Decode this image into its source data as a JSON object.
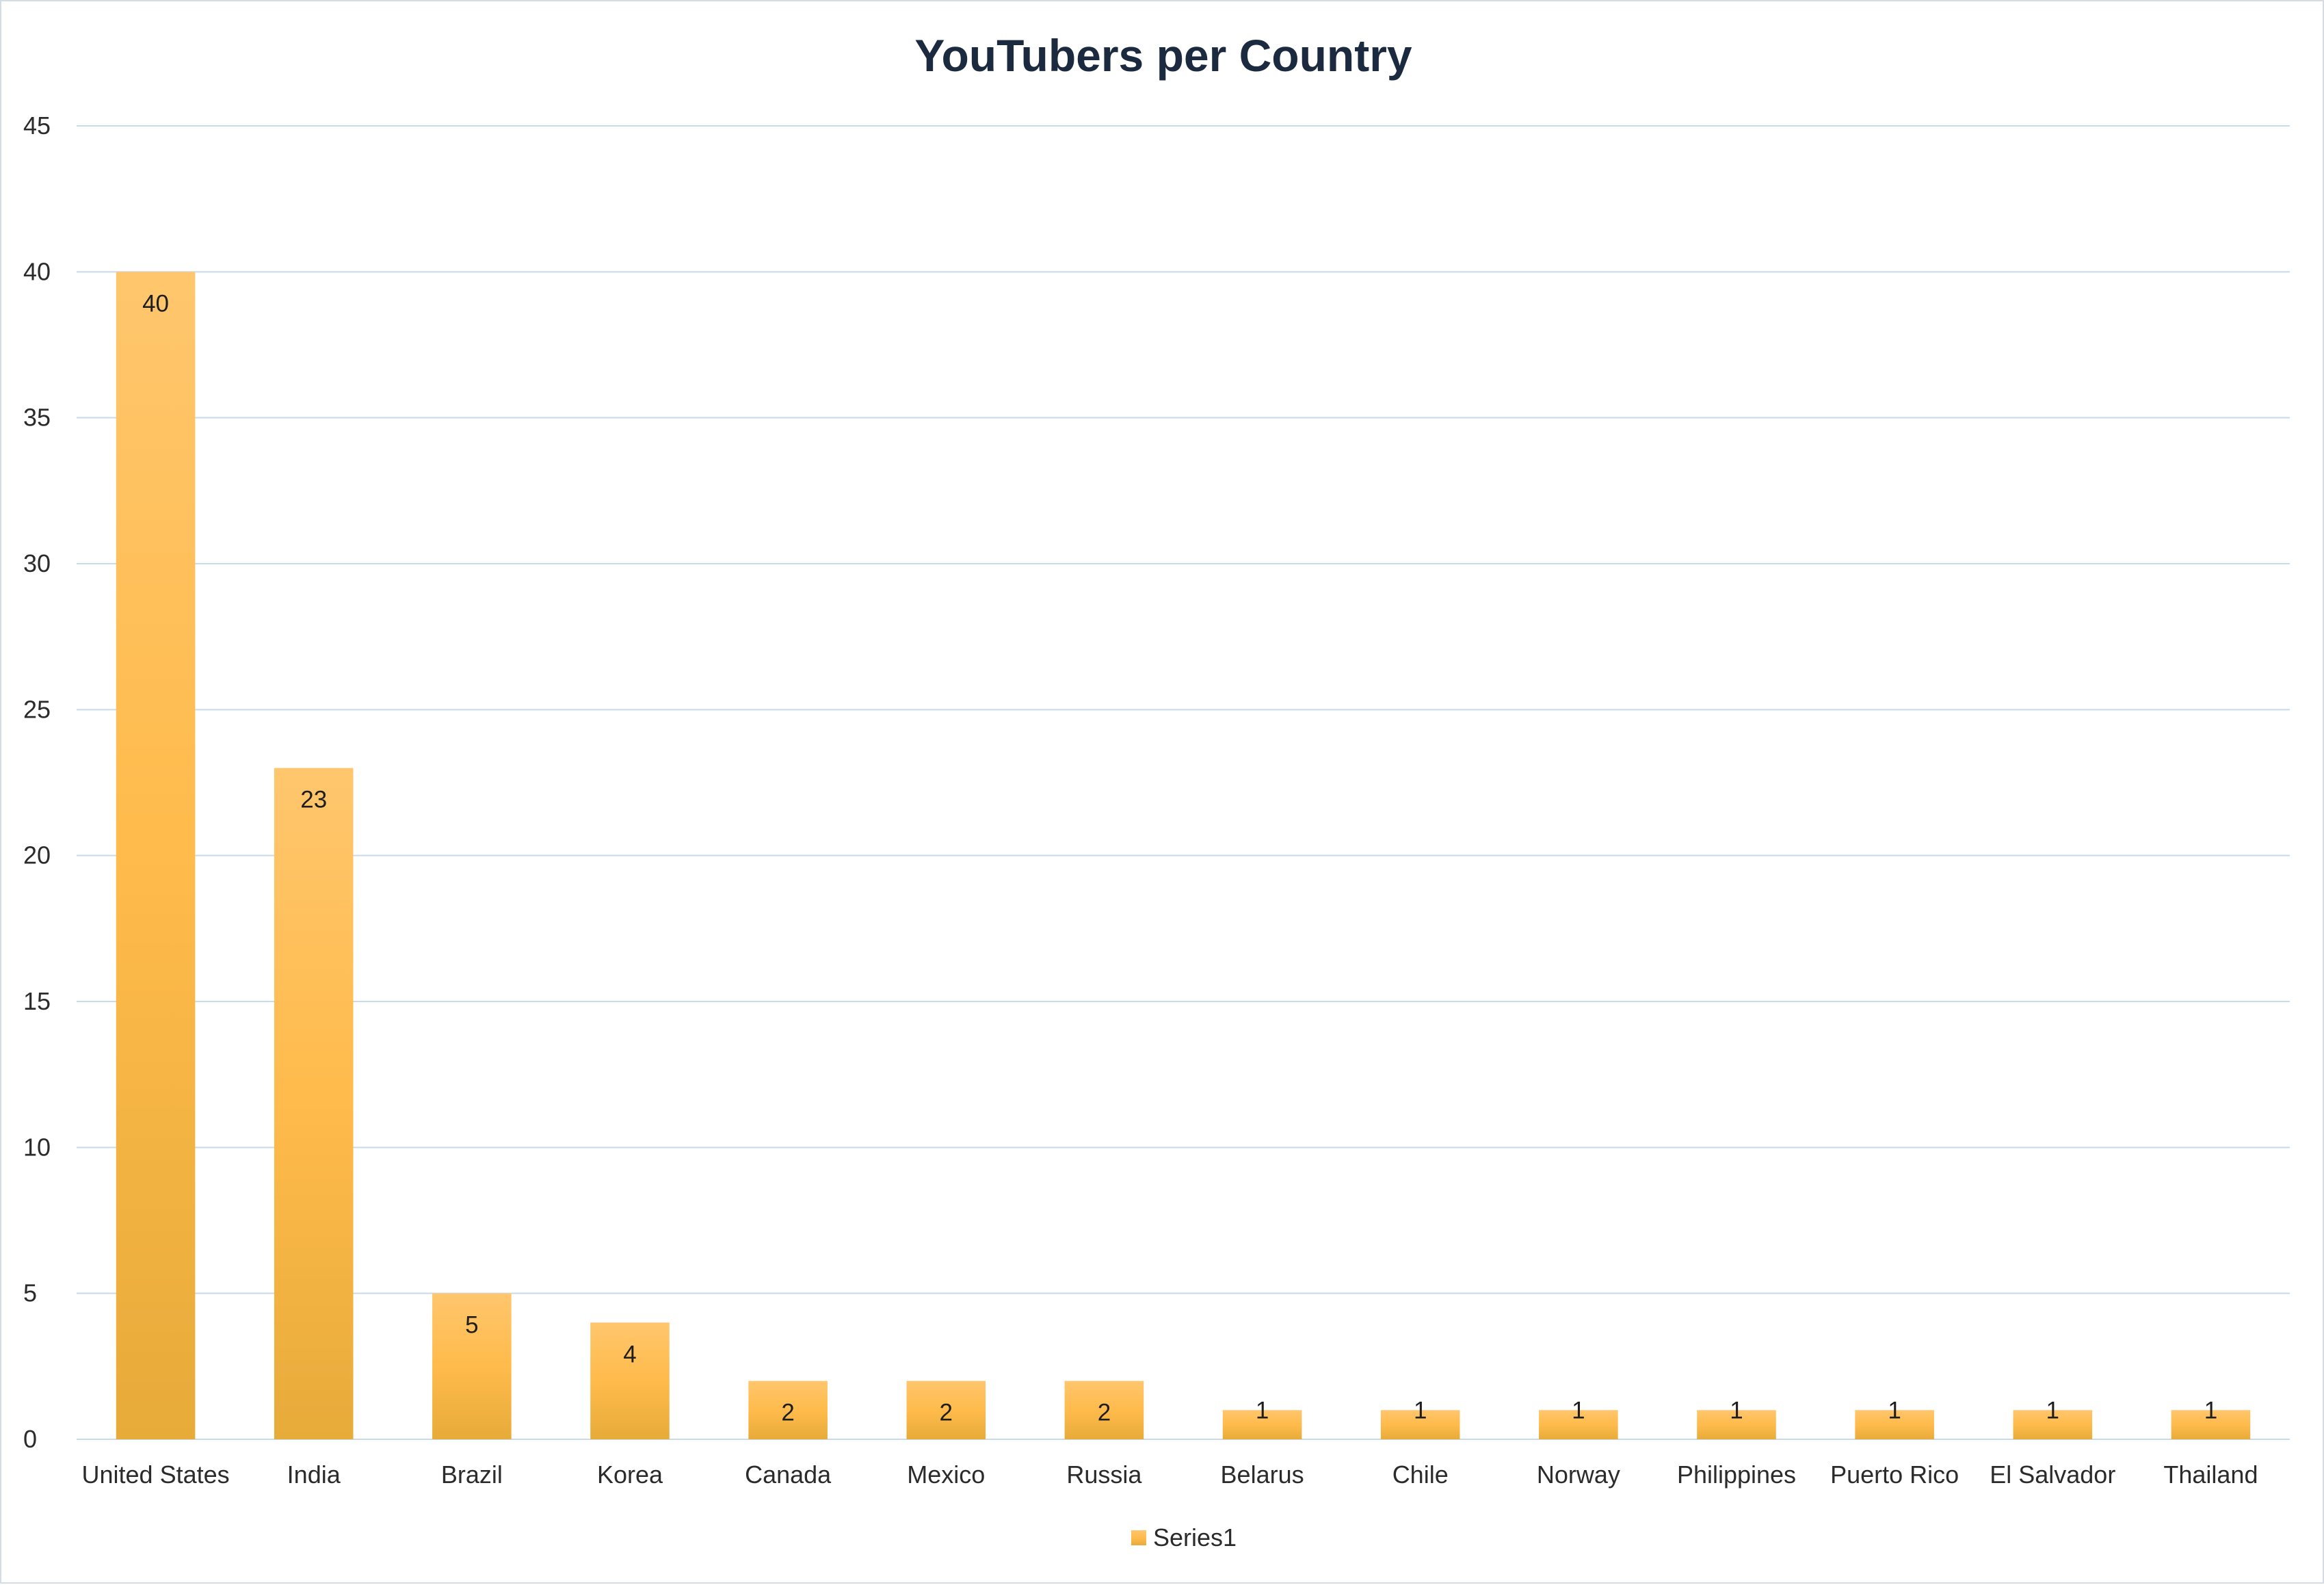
{
  "chart_data": {
    "type": "bar",
    "title": "YouTubers per Country",
    "categories": [
      "United States",
      "India",
      "Brazil",
      "Korea",
      "Canada",
      "Mexico",
      "Russia",
      "Belarus",
      "Chile",
      "Norway",
      "Philippines",
      "Puerto Rico",
      "El Salvador",
      "Thailand"
    ],
    "series": [
      {
        "name": "Series1",
        "values": [
          40,
          23,
          5,
          4,
          2,
          2,
          2,
          1,
          1,
          1,
          1,
          1,
          1,
          1
        ]
      }
    ],
    "ylim": [
      0,
      45
    ],
    "yticks": [
      0,
      5,
      10,
      15,
      20,
      25,
      30,
      35,
      40,
      45
    ],
    "grid": true,
    "legend_position": "bottom",
    "data_labels": true,
    "colors": {
      "bar_top": "#ffc66d",
      "bar_mid": "#ffbb4b",
      "bar_bottom": "#e7ab3a",
      "gridline": "#c9dbe9",
      "title": "#1b2a3f"
    }
  }
}
